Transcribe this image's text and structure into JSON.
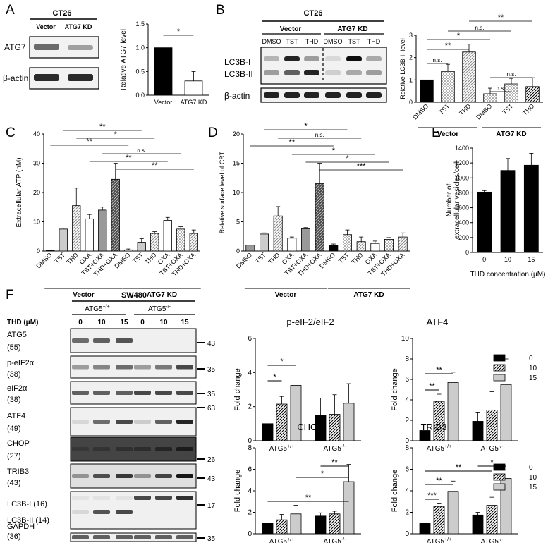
{
  "panels": {
    "A": {
      "letter": "A",
      "cell_line": "CT26",
      "lanes": [
        "Vector",
        "ATG7 KD"
      ],
      "blot_rows": [
        "ATG7",
        "β-actin"
      ],
      "chart_data": {
        "type": "bar",
        "categories": [
          "Vector",
          "ATG7 KD"
        ],
        "values": [
          1.0,
          0.3
        ],
        "errors": [
          0,
          0.2
        ],
        "ylabel": "Relative ATG7 level",
        "ylim": [
          0,
          1.5
        ],
        "yticks": [
          "0.0",
          "0.5",
          "1.0",
          "1.5"
        ],
        "sig": [
          "*"
        ]
      }
    },
    "B": {
      "letter": "B",
      "cell_line": "CT26",
      "groups": [
        "Vector",
        "ATG7 KD"
      ],
      "lanes": [
        "DMSO",
        "TST",
        "THD",
        "DMSO",
        "TST",
        "THD"
      ],
      "blot_rows": [
        "LC3B-I",
        "LC3B-II",
        "β-actin"
      ],
      "chart_data": {
        "type": "bar",
        "categories": [
          "DMSO",
          "TST",
          "THD",
          "DMSO",
          "TST",
          "THD"
        ],
        "values": [
          1.0,
          1.38,
          2.25,
          0.38,
          0.82,
          0.7
        ],
        "errors": [
          0,
          0.32,
          0.35,
          0.25,
          0.25,
          0.4
        ],
        "ylabel": "Relative LC3B-II level",
        "ylim": [
          0,
          3
        ],
        "yticks": [
          "0",
          "1",
          "2",
          "3"
        ],
        "group_labels": [
          "Vector",
          "ATG7 KD"
        ],
        "sig": [
          "**",
          "n.s.",
          "*",
          "n.s.",
          "n.s.",
          "n.s.",
          "**"
        ]
      }
    },
    "C": {
      "letter": "C",
      "chart_data": {
        "type": "bar",
        "categories": [
          "DMSO",
          "TST",
          "THD",
          "OXA",
          "TST+OXA",
          "THD+OXA",
          "DMSO",
          "TST",
          "THD",
          "OXA",
          "TST+OXA",
          "THD+OXA"
        ],
        "values": [
          0.2,
          7.5,
          15.5,
          11,
          14,
          24.5,
          0.4,
          3,
          6,
          10.5,
          7.5,
          6
        ],
        "errors": [
          0,
          0.3,
          6,
          1.5,
          1,
          5.5,
          0.3,
          1.2,
          0.6,
          1,
          0.8,
          1.2
        ],
        "ylabel": "Extracellular ATP (nM)",
        "ylim": [
          0,
          40
        ],
        "yticks": [
          "0",
          "10",
          "20",
          "30",
          "40"
        ],
        "group_labels": [
          "Vector",
          "ATG7 KD"
        ],
        "sig": [
          "**",
          "*",
          "**",
          "n.s.",
          "**",
          "**"
        ]
      }
    },
    "D": {
      "letter": "D",
      "chart_data": {
        "type": "bar",
        "categories": [
          "DMSO",
          "TST",
          "THD",
          "OXA",
          "TST+OXA",
          "THD+OXA",
          "DMSO",
          "TST",
          "THD",
          "OXA",
          "TST+OXA",
          "THD+OXA"
        ],
        "values": [
          1,
          2.9,
          6,
          2.2,
          3.8,
          11.5,
          1,
          2.8,
          1.6,
          1.3,
          2,
          2.4
        ],
        "errors": [
          0,
          0.2,
          1.6,
          0.2,
          0.2,
          3.5,
          0.2,
          0.8,
          0.8,
          0.4,
          0.3,
          0.7
        ],
        "ylabel": "Relative surface level of CRT",
        "ylim": [
          0,
          20
        ],
        "yticks": [
          "0",
          "5",
          "10",
          "15",
          "20"
        ],
        "group_labels": [
          "Vector",
          "ATG7 KD"
        ],
        "sig": [
          "*",
          "n.s.",
          "**",
          "*",
          "*",
          "***"
        ]
      }
    },
    "E": {
      "letter": "E",
      "chart_data": {
        "type": "bar",
        "categories": [
          "0",
          "10",
          "15"
        ],
        "values": [
          810,
          1100,
          1170
        ],
        "errors": [
          20,
          160,
          160
        ],
        "ylabel": "Number of extracellular vesicles/cell",
        "xlabel": "THD concentration (μM)",
        "ylim": [
          0,
          1400
        ],
        "yticks": [
          "0",
          "200",
          "400",
          "600",
          "800",
          "1000",
          "1200",
          "1400"
        ]
      }
    },
    "F": {
      "letter": "F",
      "cell_line": "SW480",
      "dose_label": "THD (μM)",
      "genotypes": [
        "ATG5+/+",
        "ATG5-/-"
      ],
      "doses": [
        "0",
        "10",
        "15",
        "0",
        "10",
        "15"
      ],
      "blot_rows": [
        {
          "name": "ATG5",
          "size": "(55)",
          "marker": "43"
        },
        {
          "name": "p-eIF2α",
          "size": "(38)",
          "marker": "35"
        },
        {
          "name": "eIF2α",
          "size": "(38)",
          "marker": "35"
        },
        {
          "name": "ATF4",
          "size": "(49)",
          "marker": "63"
        },
        {
          "name": "CHOP",
          "size": "(27)",
          "marker": "26"
        },
        {
          "name": "TRIB3",
          "size": "(43)",
          "marker": "43"
        },
        {
          "name": "LC3B-I (16)",
          "size": "LC3B-II (14)",
          "marker": "17"
        },
        {
          "name": "GAPDH",
          "size": "(36)",
          "marker": "35"
        }
      ],
      "legend": [
        "0",
        "10",
        "15"
      ],
      "charts": [
        {
          "type": "bar",
          "title": "p-eIF2/eIF2",
          "ylabel": "Fold change",
          "ylim": [
            0,
            6
          ],
          "yticks": [
            "0",
            "2",
            "4",
            "6"
          ],
          "categories": [
            "ATG5+/+",
            "ATG5-/-"
          ],
          "series": [
            {
              "name": "0",
              "values": [
                1.0,
                1.5
              ],
              "errors": [
                0,
                1.0
              ]
            },
            {
              "name": "10",
              "values": [
                2.15,
                1.55
              ],
              "errors": [
                0.45,
                1.15
              ]
            },
            {
              "name": "15",
              "values": [
                3.25,
                2.2
              ],
              "errors": [
                1.2,
                1.15
              ]
            }
          ],
          "sig": [
            "*",
            "*"
          ]
        },
        {
          "type": "bar",
          "title": "ATF4",
          "ylabel": "Fold change",
          "ylim": [
            0,
            10
          ],
          "yticks": [
            "0",
            "2",
            "4",
            "6",
            "8",
            "10"
          ],
          "categories": [
            "ATG5+/+",
            "ATG5-/-"
          ],
          "series": [
            {
              "name": "0",
              "values": [
                1.0,
                1.9
              ],
              "errors": [
                0,
                0.9
              ]
            },
            {
              "name": "10",
              "values": [
                3.85,
                3.0
              ],
              "errors": [
                0.7,
                1.8
              ]
            },
            {
              "name": "15",
              "values": [
                5.7,
                5.5
              ],
              "errors": [
                1.0,
                2.5
              ]
            }
          ],
          "sig": [
            "**",
            "**"
          ]
        },
        {
          "type": "bar",
          "title": "CHOP",
          "ylabel": "Fold change",
          "ylim": [
            0,
            8
          ],
          "yticks": [
            "0",
            "2",
            "4",
            "6",
            "8"
          ],
          "categories": [
            "ATG5+/+",
            "ATG5-/-"
          ],
          "series": [
            {
              "name": "0",
              "values": [
                1.0,
                1.65
              ],
              "errors": [
                0,
                0.3
              ]
            },
            {
              "name": "10",
              "values": [
                1.3,
                1.85
              ],
              "errors": [
                0.5,
                0.25
              ]
            },
            {
              "name": "15",
              "values": [
                1.85,
                4.85
              ],
              "errors": [
                0.8,
                1.6
              ]
            }
          ],
          "sig": [
            "**",
            "*",
            "**"
          ]
        },
        {
          "type": "bar",
          "title": "TRIB3",
          "ylabel": "Fold change",
          "ylim": [
            0,
            8
          ],
          "yticks": [
            "0",
            "2",
            "4",
            "6",
            "8"
          ],
          "categories": [
            "ATG5+/+",
            "ATG5-/-"
          ],
          "series": [
            {
              "name": "0",
              "values": [
                1.0,
                1.75
              ],
              "errors": [
                0,
                0.25
              ]
            },
            {
              "name": "10",
              "values": [
                2.55,
                2.65
              ],
              "errors": [
                0.3,
                0.75
              ]
            },
            {
              "name": "15",
              "values": [
                3.95,
                5.15
              ],
              "errors": [
                0.95,
                1.9
              ]
            }
          ],
          "sig": [
            "***",
            "**",
            "**",
            "*"
          ]
        }
      ]
    }
  }
}
